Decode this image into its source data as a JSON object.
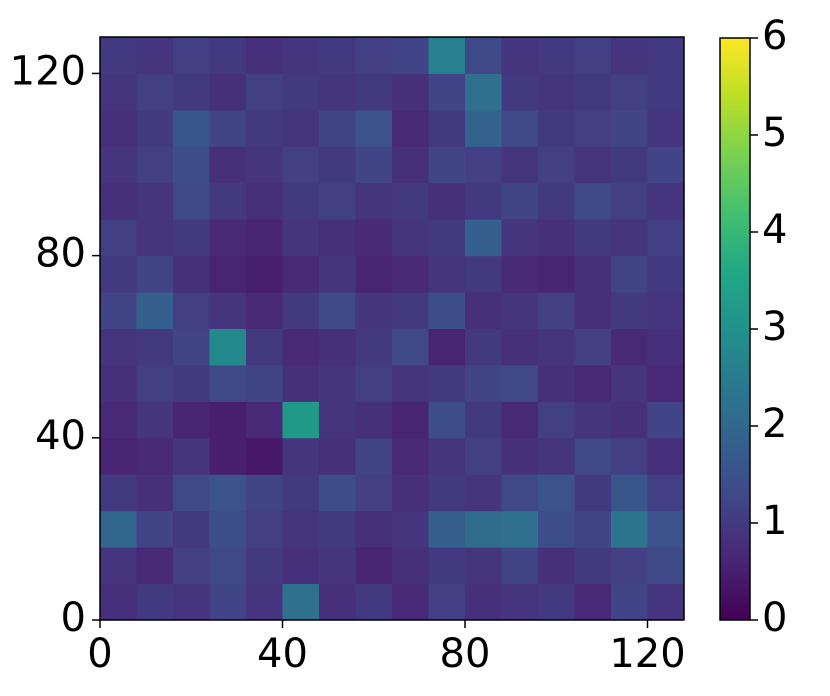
{
  "chart_data": {
    "type": "heatmap",
    "colormap": "viridis",
    "xlim": [
      0,
      128
    ],
    "ylim": [
      0,
      128
    ],
    "xticks": [
      0,
      40,
      80,
      120
    ],
    "yticks": [
      0,
      40,
      80,
      120
    ],
    "zlim": [
      0,
      6
    ],
    "colorbar_ticks": [
      0,
      1,
      2,
      3,
      4,
      5,
      6
    ],
    "z": [
      [
        0.8,
        1.0,
        0.9,
        1.2,
        0.9,
        2.2,
        0.8,
        1.0,
        0.7,
        1.1,
        0.8,
        0.9,
        1.0,
        0.7,
        1.2,
        0.9
      ],
      [
        0.9,
        0.7,
        1.1,
        1.3,
        1.0,
        0.8,
        0.9,
        0.6,
        0.8,
        1.0,
        0.9,
        1.2,
        0.8,
        1.0,
        1.1,
        1.3
      ],
      [
        2.0,
        1.2,
        1.0,
        1.4,
        1.1,
        0.9,
        1.0,
        0.8,
        0.9,
        1.8,
        2.1,
        2.2,
        1.4,
        1.2,
        2.3,
        1.5
      ],
      [
        1.0,
        0.8,
        1.3,
        1.5,
        1.2,
        1.0,
        1.4,
        1.1,
        0.8,
        1.0,
        0.9,
        1.3,
        1.5,
        1.0,
        1.6,
        1.1
      ],
      [
        0.6,
        0.7,
        0.9,
        0.5,
        0.4,
        0.9,
        0.8,
        1.2,
        0.7,
        0.9,
        1.1,
        0.8,
        0.9,
        1.3,
        1.1,
        0.8
      ],
      [
        0.7,
        0.9,
        0.6,
        0.5,
        0.7,
        3.2,
        0.9,
        0.8,
        0.6,
        1.4,
        1.0,
        0.7,
        1.1,
        0.9,
        0.8,
        1.2
      ],
      [
        0.8,
        1.1,
        1.0,
        1.3,
        1.2,
        0.8,
        0.9,
        1.1,
        0.9,
        1.0,
        1.2,
        1.3,
        0.8,
        0.7,
        0.9,
        0.7
      ],
      [
        0.9,
        1.0,
        1.2,
        2.8,
        1.0,
        0.7,
        0.8,
        1.0,
        1.3,
        0.6,
        1.0,
        0.8,
        0.9,
        1.1,
        0.7,
        0.8
      ],
      [
        1.2,
        1.8,
        1.1,
        0.9,
        0.7,
        1.0,
        1.3,
        0.9,
        1.0,
        1.4,
        0.8,
        0.9,
        1.1,
        0.8,
        1.0,
        0.9
      ],
      [
        1.0,
        1.2,
        0.8,
        0.6,
        0.5,
        0.7,
        0.9,
        0.6,
        0.7,
        0.9,
        1.0,
        0.7,
        0.6,
        0.8,
        1.2,
        1.0
      ],
      [
        1.1,
        0.9,
        1.0,
        0.7,
        0.6,
        0.9,
        0.8,
        0.7,
        0.9,
        1.0,
        1.8,
        0.9,
        0.8,
        1.0,
        0.9,
        1.1
      ],
      [
        0.8,
        0.9,
        1.3,
        1.0,
        0.8,
        1.0,
        1.1,
        0.9,
        1.0,
        0.8,
        1.0,
        1.2,
        1.0,
        1.3,
        1.1,
        0.9
      ],
      [
        0.9,
        1.1,
        1.4,
        0.8,
        0.9,
        1.1,
        1.0,
        1.2,
        0.8,
        1.2,
        1.1,
        0.9,
        1.1,
        0.9,
        1.0,
        1.2
      ],
      [
        0.8,
        1.0,
        1.6,
        1.2,
        1.0,
        0.9,
        1.2,
        1.5,
        0.7,
        1.0,
        1.9,
        1.3,
        1.0,
        1.1,
        1.2,
        0.9
      ],
      [
        0.9,
        1.1,
        1.0,
        0.8,
        1.1,
        1.0,
        0.9,
        1.0,
        0.8,
        1.2,
        2.2,
        1.0,
        0.9,
        1.0,
        1.1,
        1.0
      ],
      [
        1.0,
        0.9,
        1.1,
        1.0,
        0.8,
        0.9,
        1.0,
        1.1,
        1.2,
        2.6,
        1.3,
        0.9,
        1.0,
        1.1,
        0.9,
        1.0
      ]
    ]
  }
}
